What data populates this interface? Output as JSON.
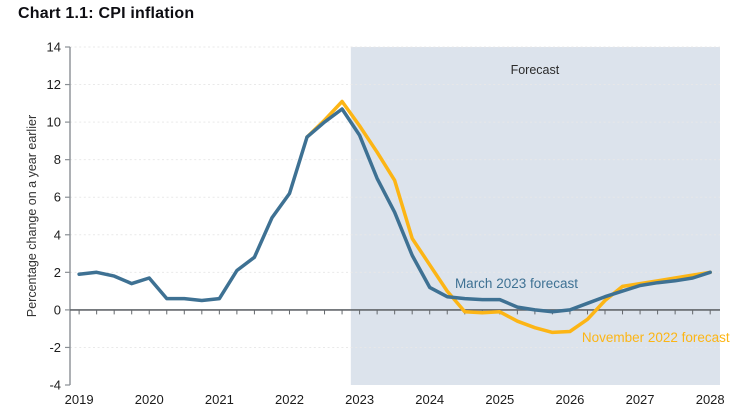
{
  "title": "Chart 1.1: CPI inflation",
  "colors": {
    "march_line": "#3e7193",
    "november_line": "#fcb515",
    "forecast_band": "#dce3ec",
    "zero_axis": "#63676b",
    "axis": "#8a8f94",
    "grid": "#e8e8e8",
    "tick_text": "#1c1c1c",
    "title_text": "#0d0d12",
    "forecast_text": "#2b2b2b",
    "ylabel_text": "#333333"
  },
  "chart_data": {
    "type": "line",
    "title": "Chart 1.1: CPI inflation",
    "ylabel": "Percentage change on a year earlier",
    "xlabel": "",
    "xlim": [
      2018.87,
      2028.14
    ],
    "ylim": [
      -4,
      14
    ],
    "y_ticks": [
      -4,
      -2,
      0,
      2,
      4,
      6,
      8,
      10,
      12,
      14
    ],
    "x_ticks": [
      2019,
      2020,
      2021,
      2022,
      2023,
      2024,
      2025,
      2026,
      2027,
      2028
    ],
    "grid_values": [
      -2,
      2,
      4,
      6,
      8,
      10,
      12,
      14
    ],
    "quarter_tick_step": 0.25,
    "grid_on": true,
    "legend_position": "inline-annotations",
    "forecast_band": {
      "label": "Forecast",
      "start": 2022.875,
      "label_t": 2025.5,
      "label_v": 12.55
    },
    "series": [
      {
        "name": "November 2022 forecast",
        "color_key": "november_line",
        "x": [
          2022.25,
          2022.5,
          2022.75,
          2023.0,
          2023.25,
          2023.5,
          2023.75,
          2024.0,
          2024.25,
          2024.5,
          2024.75,
          2025.0,
          2025.25,
          2025.5,
          2025.75,
          2026.0,
          2026.25,
          2026.5,
          2026.75,
          2027.0,
          2027.25,
          2027.5,
          2027.75,
          2028.0
        ],
        "values": [
          9.2,
          10.1,
          11.1,
          9.8,
          8.4,
          6.9,
          3.8,
          2.4,
          1.0,
          -0.1,
          -0.15,
          -0.1,
          -0.6,
          -0.95,
          -1.2,
          -1.15,
          -0.5,
          0.5,
          1.25,
          1.4,
          1.55,
          1.7,
          1.85,
          2.0
        ]
      },
      {
        "name": "March 2023 forecast",
        "color_key": "march_line",
        "x": [
          2019.0,
          2019.25,
          2019.5,
          2019.75,
          2020.0,
          2020.25,
          2020.5,
          2020.75,
          2021.0,
          2021.25,
          2021.5,
          2021.75,
          2022.0,
          2022.25,
          2022.5,
          2022.75,
          2023.0,
          2023.25,
          2023.5,
          2023.75,
          2024.0,
          2024.25,
          2024.5,
          2024.75,
          2025.0,
          2025.25,
          2025.5,
          2025.75,
          2026.0,
          2026.25,
          2026.5,
          2026.75,
          2027.0,
          2027.25,
          2027.5,
          2027.75,
          2028.0
        ],
        "values": [
          1.9,
          2.0,
          1.8,
          1.4,
          1.7,
          0.6,
          0.6,
          0.5,
          0.6,
          2.1,
          2.8,
          4.9,
          6.2,
          9.2,
          10.0,
          10.7,
          9.3,
          7.0,
          5.2,
          2.9,
          1.2,
          0.7,
          0.6,
          0.55,
          0.55,
          0.15,
          0.0,
          -0.1,
          0.0,
          0.35,
          0.7,
          1.0,
          1.3,
          1.45,
          1.55,
          1.7,
          2.0
        ]
      }
    ],
    "annotations": [
      {
        "text": "March 2023 forecast",
        "t": 2024.36,
        "v": 1.16,
        "color_key": "march_line",
        "anchor": "start",
        "font_size": 13.5
      },
      {
        "text": "November 2022 forecast",
        "t": 2026.17,
        "v": -1.71,
        "color_key": "november_line",
        "anchor": "start",
        "font_size": 13.5
      }
    ]
  }
}
